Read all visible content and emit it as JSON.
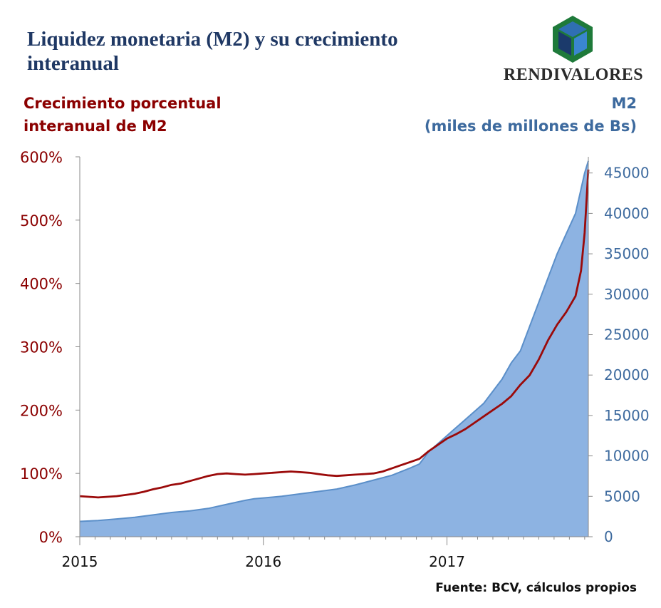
{
  "header": {
    "title": "Liquidez monetaria (M2) y su crecimiento interanual",
    "left_axis_label": "Crecimiento porcentual interanual de M2",
    "right_axis_label_line1": "M2",
    "right_axis_label_line2": "(miles de millones de Bs)",
    "logo_text": "RENDIVALORES",
    "source": "Fuente: BCV, cálculos propios"
  },
  "colors": {
    "growth_line": "#9b0a0a",
    "m2_area": "#8db3e2",
    "m2_line": "#5b8fc9",
    "left_axis_text": "#8b0000",
    "right_axis_text": "#3d6a9e",
    "title": "#1f3864"
  },
  "chart_data": {
    "type": "area",
    "x_ticks": [
      "2015",
      "2016",
      "2017"
    ],
    "y_left_ticks": [
      "0%",
      "100%",
      "200%",
      "300%",
      "400%",
      "500%",
      "600%"
    ],
    "y_left_range": [
      0,
      600
    ],
    "y_right_ticks": [
      "0",
      "5000",
      "10000",
      "15000",
      "20000",
      "25000",
      "30000",
      "35000",
      "40000",
      "45000"
    ],
    "y_right_range": [
      0,
      47000
    ],
    "x_range": [
      2015.0,
      2017.77
    ],
    "grid": false,
    "series": [
      {
        "axis": "right",
        "kind": "area",
        "x": [
          2015.0,
          2015.1,
          2015.2,
          2015.3,
          2015.4,
          2015.5,
          2015.6,
          2015.7,
          2015.8,
          2015.9,
          2015.95,
          2016.0,
          2016.1,
          2016.2,
          2016.3,
          2016.4,
          2016.5,
          2016.6,
          2016.7,
          2016.8,
          2016.85,
          2016.9,
          2016.95,
          2017.0,
          2017.05,
          2017.1,
          2017.15,
          2017.2,
          2017.25,
          2017.3,
          2017.35,
          2017.4,
          2017.45,
          2017.5,
          2017.55,
          2017.6,
          2017.65,
          2017.7,
          2017.73,
          2017.75,
          2017.77
        ],
        "values": [
          1900,
          2000,
          2200,
          2400,
          2700,
          3000,
          3200,
          3500,
          4000,
          4500,
          4700,
          4800,
          5000,
          5300,
          5600,
          5900,
          6400,
          7000,
          7600,
          8500,
          9000,
          10500,
          11500,
          12500,
          13500,
          14500,
          15500,
          16500,
          18000,
          19500,
          21500,
          23000,
          26000,
          29000,
          32000,
          35000,
          37500,
          40000,
          43000,
          45000,
          46500
        ]
      },
      {
        "axis": "left",
        "kind": "line",
        "x": [
          2015.0,
          2015.05,
          2015.1,
          2015.15,
          2015.2,
          2015.25,
          2015.3,
          2015.35,
          2015.4,
          2015.45,
          2015.5,
          2015.55,
          2015.6,
          2015.65,
          2015.7,
          2015.75,
          2015.8,
          2015.85,
          2015.9,
          2015.95,
          2016.0,
          2016.05,
          2016.1,
          2016.15,
          2016.2,
          2016.25,
          2016.3,
          2016.35,
          2016.4,
          2016.45,
          2016.5,
          2016.55,
          2016.6,
          2016.65,
          2016.7,
          2016.75,
          2016.8,
          2016.85,
          2016.9,
          2016.95,
          2017.0,
          2017.05,
          2017.1,
          2017.15,
          2017.2,
          2017.25,
          2017.3,
          2017.35,
          2017.4,
          2017.45,
          2017.5,
          2017.55,
          2017.6,
          2017.65,
          2017.7,
          2017.73,
          2017.75,
          2017.77
        ],
        "values": [
          64,
          63,
          62,
          63,
          64,
          66,
          68,
          71,
          75,
          78,
          82,
          84,
          88,
          92,
          96,
          99,
          100,
          99,
          98,
          99,
          100,
          101,
          102,
          103,
          102,
          101,
          99,
          97,
          96,
          97,
          98,
          99,
          100,
          103,
          108,
          113,
          118,
          123,
          135,
          145,
          155,
          162,
          170,
          180,
          190,
          200,
          210,
          222,
          240,
          255,
          280,
          310,
          335,
          355,
          380,
          420,
          480,
          580
        ]
      }
    ]
  }
}
